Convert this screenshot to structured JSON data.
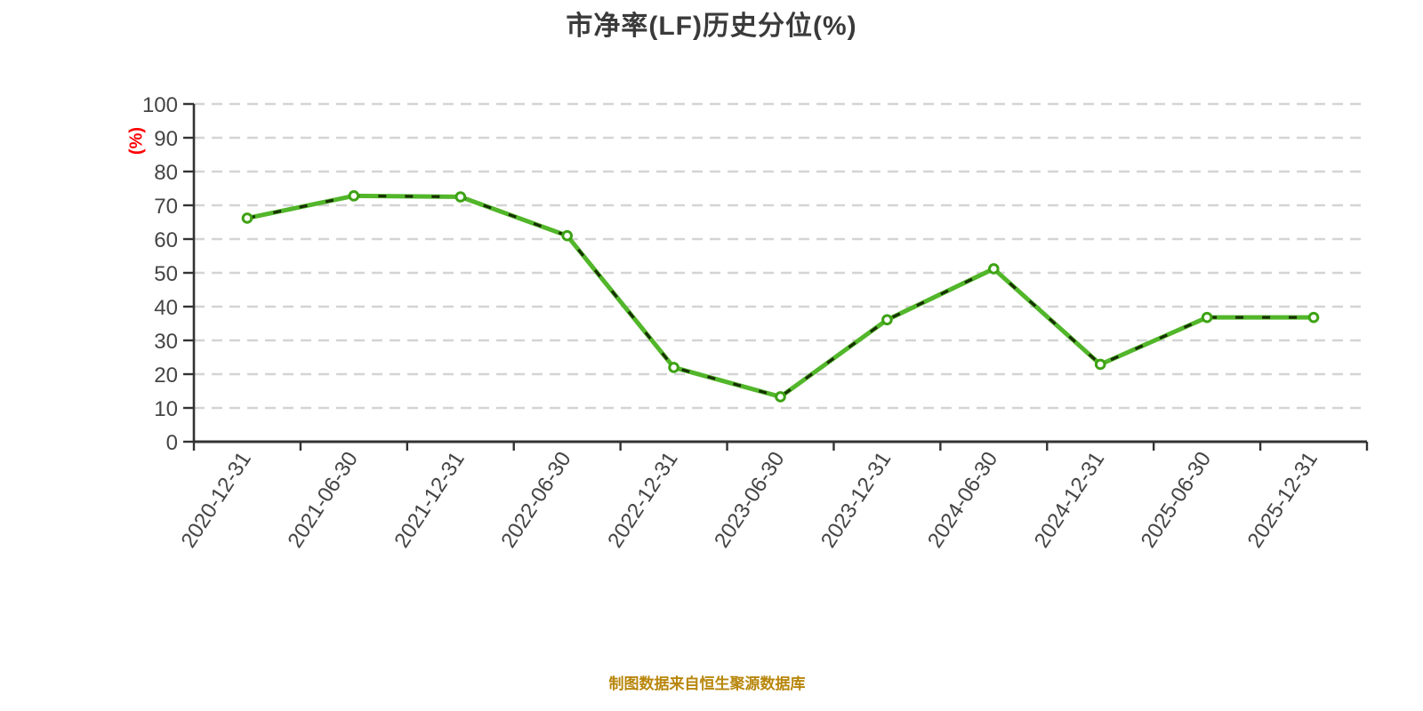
{
  "chart_data": {
    "type": "line",
    "title": "市净率(LF)历史分位(%)",
    "ylabel": "(%)",
    "footer_note": "制图数据来自恒生聚源数据库",
    "legend": "none",
    "grid": "horizontal-dashed",
    "x_label_rotation_deg": -57,
    "categories": [
      "2020-12-31",
      "2021-06-30",
      "2021-12-31",
      "2022-06-30",
      "2022-12-31",
      "2023-06-30",
      "2023-12-31",
      "2024-06-30",
      "2024-12-31",
      "2025-06-30",
      "2025-12-31"
    ],
    "series": [
      {
        "name": "市净率(LF)历史分位(%)",
        "values": [
          66.2,
          72.8,
          72.5,
          61.0,
          22.0,
          13.3,
          36.1,
          51.2,
          22.9,
          36.8,
          36.8
        ]
      }
    ],
    "ylim": [
      0,
      100
    ],
    "ytick_step": 10,
    "yticks": [
      0,
      10,
      20,
      30,
      40,
      50,
      60,
      70,
      80,
      90,
      100
    ],
    "colors": {
      "line": "#52b62a",
      "line_dash_overlay": "#173003",
      "marker_fill": "#ffffff",
      "marker_stroke": "#3da214",
      "grid": "#d4d4d4",
      "axis": "#333333",
      "tick_label": "#454545",
      "title": "#3a3a3a",
      "ylabel": "#ff0000",
      "footer": "#b8860b"
    }
  }
}
